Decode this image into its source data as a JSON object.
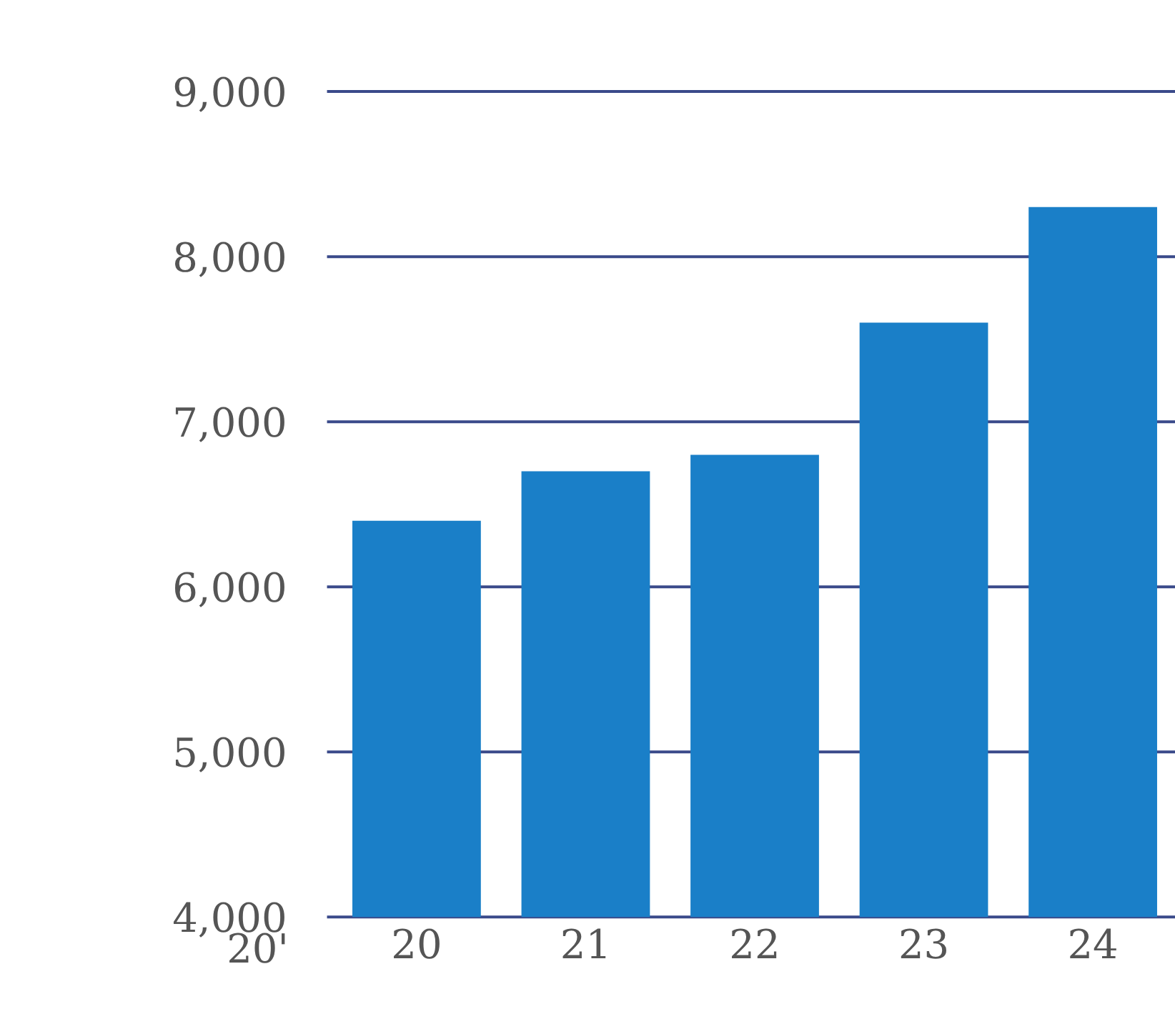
{
  "chart_data": {
    "type": "bar",
    "categories": [
      "20",
      "21",
      "22",
      "23",
      "24"
    ],
    "values": [
      6400,
      6700,
      6800,
      7600,
      8300
    ],
    "color": "#1a7fc8",
    "ylim": [
      4000,
      9550
    ],
    "yticks": [
      {
        "value": 4000,
        "label": "4,000"
      },
      {
        "value": 5000,
        "label": "5,000"
      },
      {
        "value": 6000,
        "label": "6,000"
      },
      {
        "value": 7000,
        "label": "7,000"
      },
      {
        "value": 8000,
        "label": "8,000"
      },
      {
        "value": 9000,
        "label": "9,000"
      }
    ],
    "grid": "y",
    "xlabel": "20'"
  }
}
